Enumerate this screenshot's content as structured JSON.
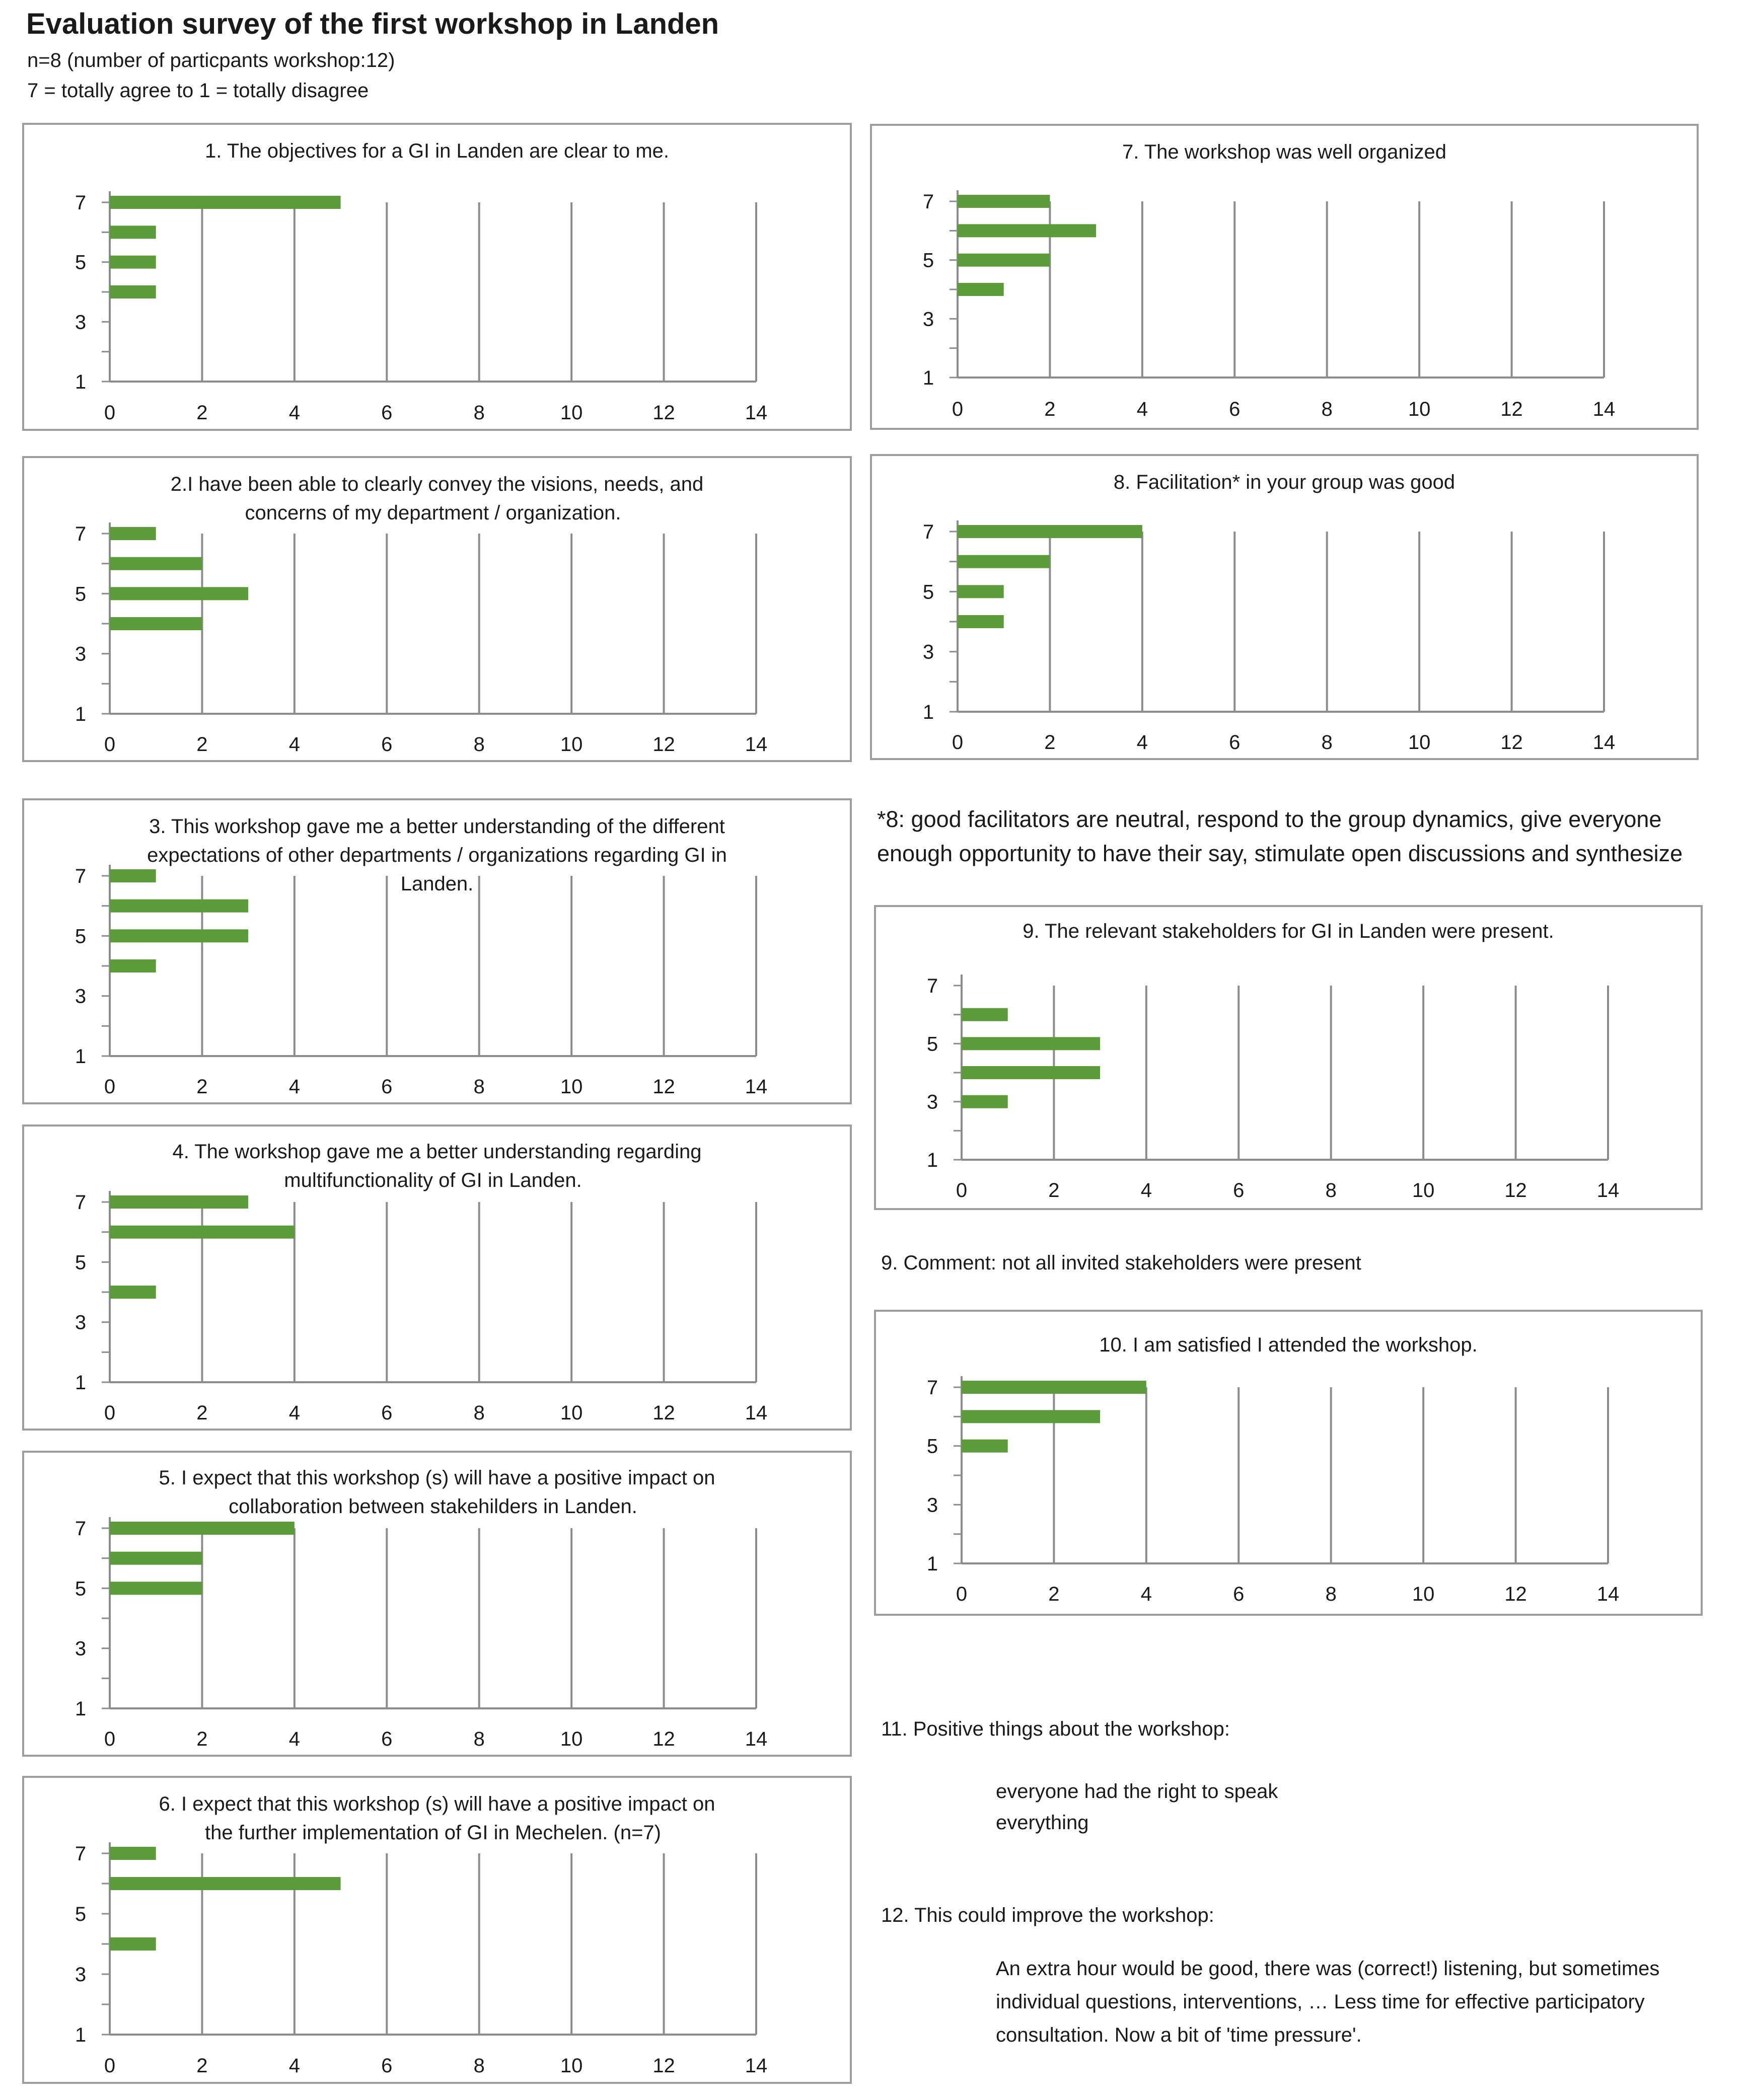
{
  "page": {
    "title": "Evaluation survey of the first workshop in Landen",
    "subtitle1": "n=8 (number of particpants workshop:12)",
    "subtitle2": "7 = totally agree  to 1 = totally disagree"
  },
  "colors": {
    "bar": "#5b9b3a",
    "grid": "#8c8c8c",
    "border": "#9e9e9e",
    "axis": "#8c8c8c"
  },
  "chart_data": [
    {
      "type": "bar",
      "orientation": "horizontal",
      "title": [
        "1. The objectives  for a GI in Landen are clear to me."
      ],
      "y_ticks": [
        "7",
        "5",
        "3",
        "1"
      ],
      "x_ticks": [
        "0",
        "2",
        "4",
        "6",
        "8",
        "10",
        "12",
        "14"
      ],
      "xlim": [
        0,
        14
      ],
      "ylim": [
        1,
        7
      ],
      "categories": [
        7,
        6,
        5,
        4
      ],
      "values": [
        5,
        1,
        1,
        1
      ]
    },
    {
      "type": "bar",
      "orientation": "horizontal",
      "title": [
        "2.I have been able to clearly convey the visions, needs, and",
        "concerns  of my department  / organization."
      ],
      "y_ticks": [
        "7",
        "5",
        "3",
        "1"
      ],
      "x_ticks": [
        "0",
        "2",
        "4",
        "6",
        "8",
        "10",
        "12",
        "14"
      ],
      "xlim": [
        0,
        14
      ],
      "ylim": [
        1,
        7
      ],
      "categories": [
        7,
        6,
        5,
        4
      ],
      "values": [
        1,
        2,
        3,
        2
      ]
    },
    {
      "type": "bar",
      "orientation": "horizontal",
      "title": [
        "3. This workshop gave me a better understanding  of the different",
        "expectations  of other departments  / organizations  regarding  GI in",
        "Landen."
      ],
      "y_ticks": [
        "7",
        "5",
        "3",
        "1"
      ],
      "x_ticks": [
        "0",
        "2",
        "4",
        "6",
        "8",
        "10",
        "12",
        "14"
      ],
      "xlim": [
        0,
        14
      ],
      "ylim": [
        1,
        7
      ],
      "categories": [
        7,
        6,
        5,
        4
      ],
      "values": [
        1,
        3,
        3,
        1
      ]
    },
    {
      "type": "bar",
      "orientation": "horizontal",
      "title": [
        "4. The workshop gave me a better understanding  regarding",
        "multifunctionality   of GI in Landen."
      ],
      "y_ticks": [
        "7",
        "5",
        "3",
        "1"
      ],
      "x_ticks": [
        "0",
        "2",
        "4",
        "6",
        "8",
        "10",
        "12",
        "14"
      ],
      "xlim": [
        0,
        14
      ],
      "ylim": [
        1,
        7
      ],
      "categories": [
        7,
        6,
        4
      ],
      "values": [
        3,
        4,
        1
      ]
    },
    {
      "type": "bar",
      "orientation": "horizontal",
      "title": [
        "5. I expect that this workshop (s)  will have a positive impact on",
        "collaboration  between stakehilders  in Landen."
      ],
      "y_ticks": [
        "7",
        "5",
        "3",
        "1"
      ],
      "x_ticks": [
        "0",
        "2",
        "4",
        "6",
        "8",
        "10",
        "12",
        "14"
      ],
      "xlim": [
        0,
        14
      ],
      "ylim": [
        1,
        7
      ],
      "categories": [
        7,
        6,
        5
      ],
      "values": [
        4,
        2,
        2
      ]
    },
    {
      "type": "bar",
      "orientation": "horizontal",
      "title": [
        "6. I expect that this workshop (s)  will have a positive impact on",
        "the further  implementation   of GI in Mechelen. (n=7)"
      ],
      "y_ticks": [
        "7",
        "5",
        "3",
        "1"
      ],
      "x_ticks": [
        "0",
        "2",
        "4",
        "6",
        "8",
        "10",
        "12",
        "14"
      ],
      "xlim": [
        0,
        14
      ],
      "ylim": [
        1,
        7
      ],
      "categories": [
        7,
        6,
        4
      ],
      "values": [
        1,
        5,
        1
      ]
    },
    {
      "type": "bar",
      "orientation": "horizontal",
      "title": [
        "7. The workshop  was well organized"
      ],
      "y_ticks": [
        "7",
        "5",
        "3",
        "1"
      ],
      "x_ticks": [
        "0",
        "2",
        "4",
        "6",
        "8",
        "10",
        "12",
        "14"
      ],
      "xlim": [
        0,
        14
      ],
      "ylim": [
        1,
        7
      ],
      "categories": [
        7,
        6,
        5,
        4
      ],
      "values": [
        2,
        3,
        2,
        1
      ]
    },
    {
      "type": "bar",
      "orientation": "horizontal",
      "title": [
        "8. Facilitation*  in your group was good"
      ],
      "y_ticks": [
        "7",
        "5",
        "3",
        "1"
      ],
      "x_ticks": [
        "0",
        "2",
        "4",
        "6",
        "8",
        "10",
        "12",
        "14"
      ],
      "xlim": [
        0,
        14
      ],
      "ylim": [
        1,
        7
      ],
      "categories": [
        7,
        6,
        5,
        4
      ],
      "values": [
        4,
        2,
        1,
        1
      ]
    },
    {
      "type": "bar",
      "orientation": "horizontal",
      "title": [
        "9. The relevant stakeholders for GI  in Landen were present."
      ],
      "y_ticks": [
        "7",
        "5",
        "3",
        "1"
      ],
      "x_ticks": [
        "0",
        "2",
        "4",
        "6",
        "8",
        "10",
        "12",
        "14"
      ],
      "xlim": [
        0,
        14
      ],
      "ylim": [
        1,
        7
      ],
      "categories": [
        6,
        5,
        4,
        3
      ],
      "values": [
        1,
        3,
        3,
        1
      ]
    },
    {
      "type": "bar",
      "orientation": "horizontal",
      "title": [
        "10. I am satisfied  I attended  the workshop."
      ],
      "y_ticks": [
        "7",
        "5",
        "3",
        "1"
      ],
      "x_ticks": [
        "0",
        "2",
        "4",
        "6",
        "8",
        "10",
        "12",
        "14"
      ],
      "xlim": [
        0,
        14
      ],
      "ylim": [
        1,
        7
      ],
      "categories": [
        7,
        6,
        5
      ],
      "values": [
        4,
        3,
        1
      ]
    }
  ],
  "notes": {
    "facilitation_note_line1": "*8: good facilitators are neutral, respond to the group dynamics, give everyone",
    "facilitation_note_line2": "enough opportunity to have their say, stimulate open discussions and synthesize",
    "q9_comment": "9. Comment: not all invited stakeholders were present",
    "q11_title": "11. Positive things about the workshop:",
    "q11_items": [
      "everyone had the right to speak",
      "everything"
    ],
    "q12_title": "12. This could improve the workshop:",
    "q12_lines": [
      "An extra hour would be good, there was (correct!) listening, but sometimes",
      "individual questions, interventions, … Less time for effective participatory",
      "consultation. Now a bit of 'time pressure'."
    ]
  }
}
